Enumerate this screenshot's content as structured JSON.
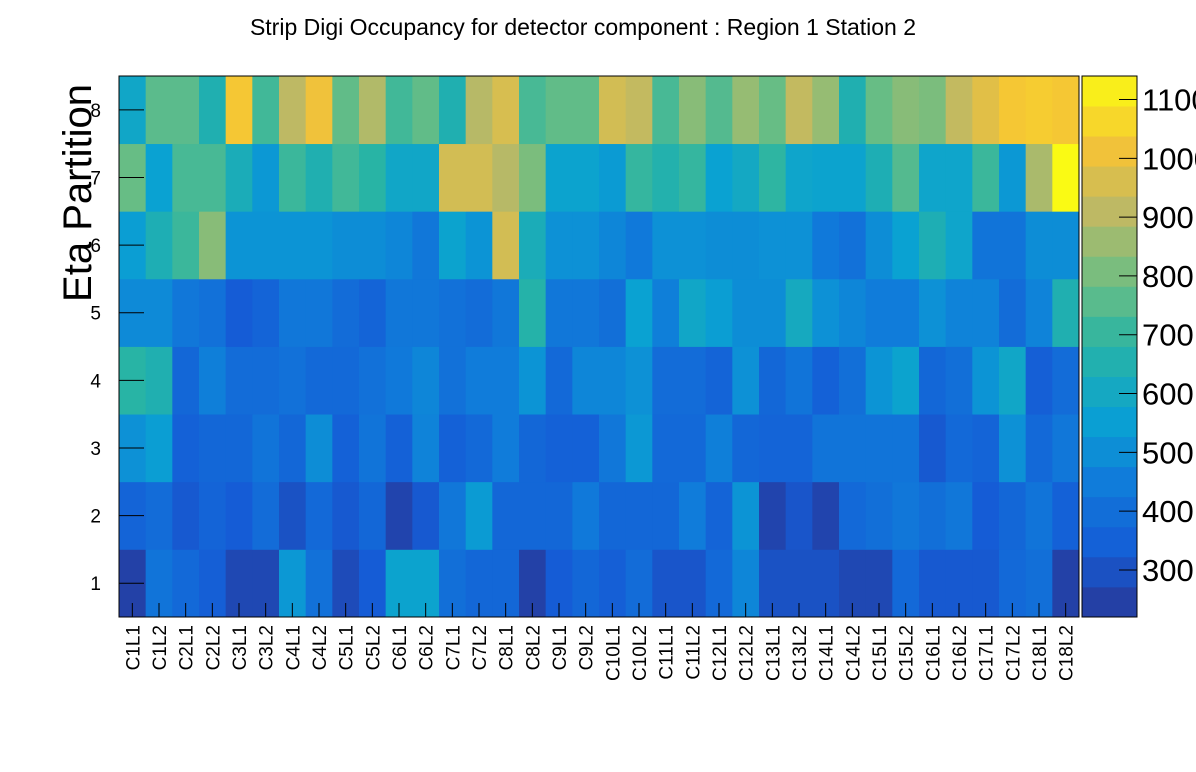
{
  "chart_data": {
    "type": "heatmap",
    "title": "Strip Digi Occupancy for detector component : Region 1 Station 2",
    "xlabel": "",
    "ylabel": "Eta Partition",
    "x_categories": [
      "C1L1",
      "C1L2",
      "C2L1",
      "C2L2",
      "C3L1",
      "C3L2",
      "C4L1",
      "C4L2",
      "C5L1",
      "C5L2",
      "C6L1",
      "C6L2",
      "C7L1",
      "C7L2",
      "C8L1",
      "C8L2",
      "C9L1",
      "C9L2",
      "C10L1",
      "C10L2",
      "C11L1",
      "C11L2",
      "C12L1",
      "C12L2",
      "C13L1",
      "C13L2",
      "C14L1",
      "C14L2",
      "C15L1",
      "C15L2",
      "C16L1",
      "C16L2",
      "C17L1",
      "C17L2",
      "C18L1",
      "C18L2"
    ],
    "y_categories": [
      "1",
      "2",
      "3",
      "4",
      "5",
      "6",
      "7",
      "8"
    ],
    "z_range": [
      220,
      1140
    ],
    "colorbar_ticks": [
      "300",
      "400",
      "500",
      "600",
      "700",
      "800",
      "900",
      "1000",
      "1100"
    ],
    "colorbar_values": [
      300,
      400,
      500,
      600,
      700,
      800,
      900,
      1000,
      1100
    ],
    "grid": false,
    "values": [
      [
        250,
        420,
        380,
        340,
        270,
        270,
        530,
        410,
        280,
        330,
        570,
        570,
        400,
        370,
        370,
        250,
        330,
        370,
        340,
        390,
        310,
        310,
        380,
        480,
        300,
        300,
        300,
        270,
        270,
        380,
        320,
        320,
        320,
        380,
        400,
        250
      ],
      [
        360,
        390,
        320,
        360,
        330,
        390,
        300,
        380,
        320,
        370,
        260,
        320,
        430,
        540,
        370,
        370,
        370,
        440,
        370,
        370,
        370,
        450,
        360,
        520,
        260,
        310,
        260,
        380,
        400,
        430,
        400,
        430,
        330,
        370,
        420,
        350
      ],
      [
        510,
        550,
        350,
        370,
        370,
        420,
        370,
        500,
        350,
        420,
        350,
        470,
        350,
        380,
        450,
        370,
        350,
        350,
        430,
        530,
        380,
        380,
        460,
        370,
        360,
        360,
        420,
        420,
        420,
        420,
        320,
        380,
        360,
        510,
        380,
        430
      ],
      [
        680,
        650,
        370,
        460,
        390,
        390,
        410,
        380,
        380,
        410,
        440,
        480,
        410,
        450,
        450,
        520,
        380,
        480,
        480,
        510,
        390,
        390,
        360,
        510,
        370,
        420,
        350,
        400,
        520,
        570,
        370,
        400,
        520,
        590,
        340,
        390
      ],
      [
        490,
        490,
        430,
        410,
        330,
        360,
        430,
        430,
        390,
        360,
        430,
        430,
        410,
        390,
        430,
        670,
        430,
        430,
        400,
        560,
        460,
        590,
        550,
        500,
        500,
        610,
        510,
        480,
        450,
        450,
        510,
        470,
        470,
        390,
        470,
        650
      ],
      [
        550,
        640,
        710,
        830,
        520,
        520,
        520,
        520,
        500,
        500,
        480,
        430,
        570,
        520,
        950,
        630,
        510,
        510,
        480,
        440,
        510,
        510,
        500,
        500,
        510,
        510,
        440,
        410,
        500,
        560,
        640,
        580,
        420,
        420,
        500,
        500
      ],
      [
        780,
        560,
        730,
        730,
        630,
        530,
        710,
        650,
        720,
        680,
        590,
        590,
        950,
        950,
        900,
        810,
        570,
        570,
        540,
        700,
        660,
        700,
        560,
        600,
        690,
        580,
        570,
        570,
        640,
        750,
        580,
        580,
        710,
        530,
        880,
        1140
      ],
      [
        590,
        760,
        760,
        650,
        1030,
        720,
        910,
        1010,
        770,
        890,
        720,
        770,
        650,
        900,
        960,
        730,
        770,
        770,
        950,
        920,
        730,
        830,
        750,
        850,
        780,
        920,
        850,
        650,
        780,
        830,
        810,
        920,
        980,
        1030,
        1040,
        1030
      ]
    ]
  }
}
